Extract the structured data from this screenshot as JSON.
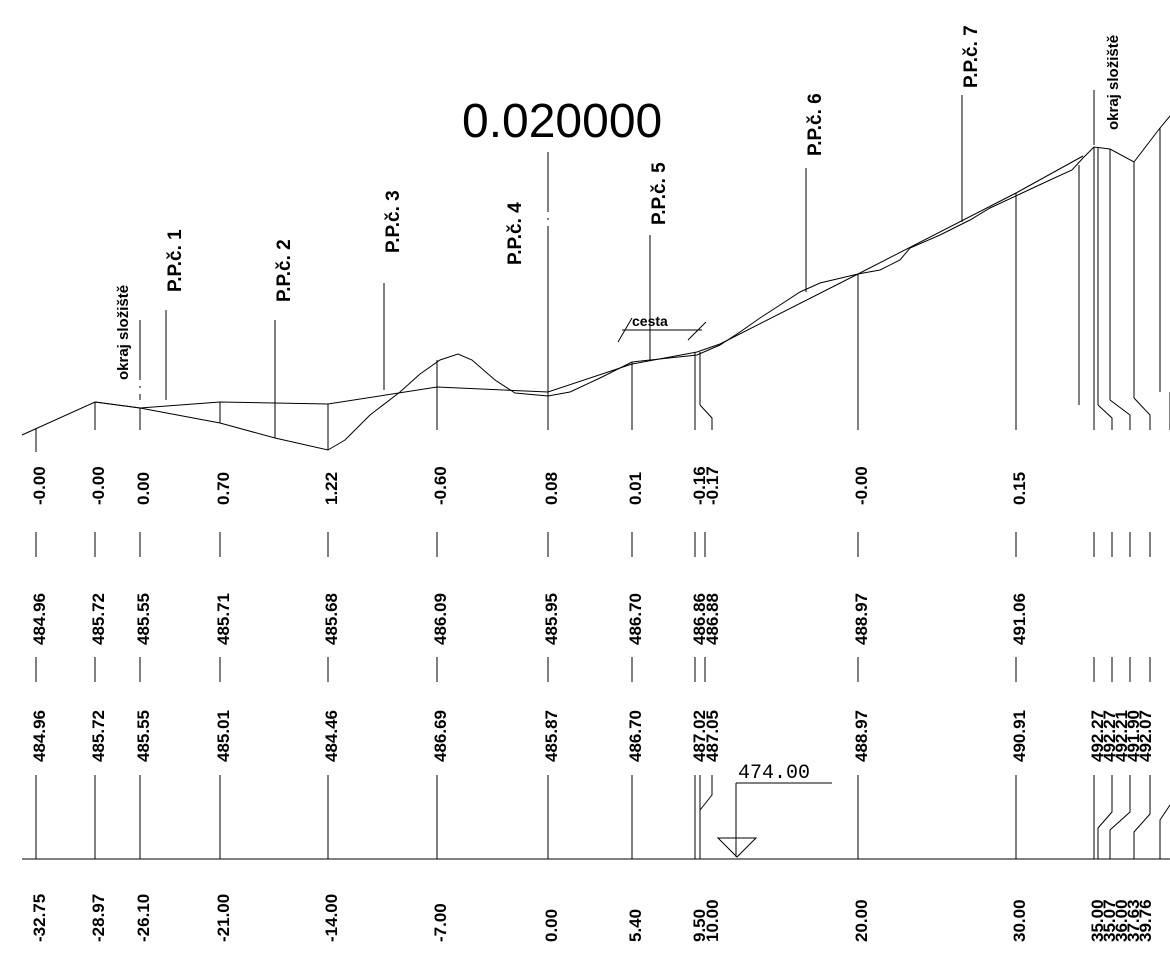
{
  "title": "0.020000",
  "datum": "474.00",
  "labels": {
    "okraj_left": "okraj složiště",
    "okraj_right": "okraj složiště",
    "cesta": "cesta",
    "ppc1": "P.P.č. 1",
    "ppc2": "P.P.č. 2",
    "ppc3": "P.P.č. 3",
    "ppc4": "P.P.č. 4",
    "ppc5": "P.P.č. 5",
    "ppc6": "P.P.č. 6",
    "ppc7": "P.P.č. 7"
  },
  "rows": {
    "differences": [
      "-0.00",
      "-0.00",
      "0.00",
      "0.70",
      "1.22",
      "-0.60",
      "0.08",
      "0.01",
      "-0.16",
      "-0.17",
      "-0.00",
      "0.15"
    ],
    "design": [
      "484.96",
      "485.72",
      "485.55",
      "485.71",
      "485.68",
      "486.09",
      "485.95",
      "486.70",
      "486.86",
      "486.88",
      "488.97",
      "491.06"
    ],
    "terrain": [
      "484.96",
      "485.72",
      "485.55",
      "485.01",
      "484.46",
      "486.69",
      "485.87",
      "486.70",
      "487.02",
      "487.05",
      "488.97",
      "490.91",
      "492.27",
      "492.27",
      "492.21",
      "491.90",
      "492.07"
    ],
    "stations": [
      "-32.75",
      "-28.97",
      "-26.10",
      "-21.00",
      "-14.00",
      "-7.00",
      "0.00",
      "5.40",
      "9.50",
      "10.00",
      "20.00",
      "30.00",
      "35.00",
      "35.07",
      "36.00",
      "37.63",
      "39.76"
    ]
  }
}
